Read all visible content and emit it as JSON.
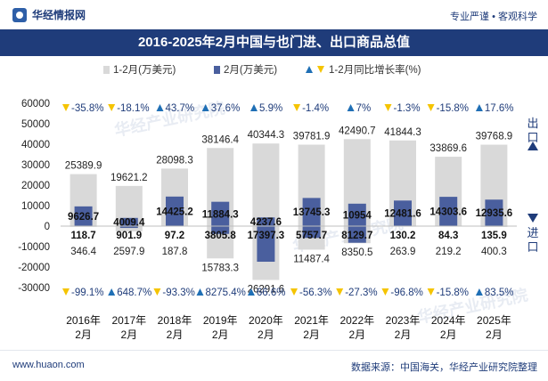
{
  "header": {
    "brand": "华经情报网",
    "tagline": "专业严谨 • 客观科学"
  },
  "title": "2016-2025年2月中国与也门进、出口商品总值",
  "footer": {
    "website": "www.huaon.com",
    "source": "数据来源：中国海关，华经产业研究院整理"
  },
  "watermark": "华经产业研究院",
  "side_labels": {
    "export": "出口",
    "import": "进口"
  },
  "colors": {
    "cumulative_bar": "#d9d9d9",
    "monthly_bar": "#4a5f9e",
    "up_arrow": "#1f6fb5",
    "down_arrow": "#f5c400",
    "rate_text": "#1f3c7a",
    "title_bg": "#1f3c7a"
  },
  "chart_data": {
    "type": "bar",
    "categories": [
      "2016年\n2月",
      "2017年\n2月",
      "2018年\n2月",
      "2019年\n2月",
      "2020年\n2月",
      "2021年\n2月",
      "2022年\n2月",
      "2023年\n2月",
      "2024年\n2月",
      "2025年\n2月"
    ],
    "legend": [
      "1-2月(万美元)",
      "2月(万美元)",
      "1-2月同比增长率(%)"
    ],
    "ylim": [
      -30000,
      60000
    ],
    "yticks": [
      -30000,
      -20000,
      -10000,
      0,
      10000,
      20000,
      30000,
      40000,
      50000,
      60000
    ],
    "grid": false,
    "series": [
      {
        "name": "出口 1-2月(万美元)",
        "values": [
          25389.9,
          19621.2,
          28098.3,
          38146.4,
          40344.3,
          39781.9,
          42490.7,
          41844.3,
          33869.6,
          39768.9
        ]
      },
      {
        "name": "出口 2月(万美元)",
        "values": [
          9626.7,
          4009.4,
          14425.2,
          11884.3,
          4237.6,
          13745.3,
          10954,
          12481.6,
          14303.6,
          12935.6
        ]
      },
      {
        "name": "进口 1-2月(万美元)",
        "values": [
          346.4,
          2597.9,
          187.8,
          15783.3,
          26291.6,
          11487.4,
          8350.5,
          263.9,
          219.2,
          400.3
        ]
      },
      {
        "name": "进口 2月(万美元)",
        "values": [
          118.7,
          901.9,
          97.2,
          3805.8,
          17397.3,
          5757.7,
          8129.7,
          130.2,
          84.3,
          135.9
        ]
      }
    ],
    "labels": {
      "export_total": [
        "25389.9",
        "19621.2",
        "28098.3",
        "38146.4",
        "40344.3",
        "39781.9",
        "42490.7",
        "41844.3",
        "33869.6",
        "39768.9"
      ],
      "export_month": [
        "9626.7",
        "4009.4",
        "14425.2",
        "11884.3",
        "4237.6",
        "13745.3",
        "10954",
        "12481.6",
        "14303.6",
        "12935.6"
      ],
      "import_total": [
        "346.4",
        "2597.9",
        "187.8",
        "15783.3",
        "26291.6",
        "11487.4",
        "8350.5",
        "263.9",
        "219.2",
        "400.3"
      ],
      "import_month": [
        "118.7",
        "901.9",
        "97.2",
        "3805.8",
        "17397.3",
        "5757.7",
        "8129.7",
        "130.2",
        "84.3",
        "135.9"
      ]
    },
    "growth_export": [
      {
        "dir": "down",
        "text": "-35.8%"
      },
      {
        "dir": "down",
        "text": "-18.1%"
      },
      {
        "dir": "up",
        "text": "43.7%"
      },
      {
        "dir": "up",
        "text": "37.6%"
      },
      {
        "dir": "up",
        "text": "5.9%"
      },
      {
        "dir": "down",
        "text": "-1.4%"
      },
      {
        "dir": "up",
        "text": "7%"
      },
      {
        "dir": "down",
        "text": "-1.3%"
      },
      {
        "dir": "down",
        "text": "-15.8%"
      },
      {
        "dir": "up",
        "text": "17.6%"
      }
    ],
    "growth_import": [
      {
        "dir": "down",
        "text": "-99.1%"
      },
      {
        "dir": "up",
        "text": "648.7%"
      },
      {
        "dir": "down",
        "text": "-93.3%"
      },
      {
        "dir": "up",
        "text": "8275.4%"
      },
      {
        "dir": "up",
        "text": "66.6%"
      },
      {
        "dir": "down",
        "text": "-56.3%"
      },
      {
        "dir": "down",
        "text": "-27.3%"
      },
      {
        "dir": "down",
        "text": "-96.8%"
      },
      {
        "dir": "down",
        "text": "-15.8%"
      },
      {
        "dir": "up",
        "text": "83.5%"
      }
    ]
  }
}
